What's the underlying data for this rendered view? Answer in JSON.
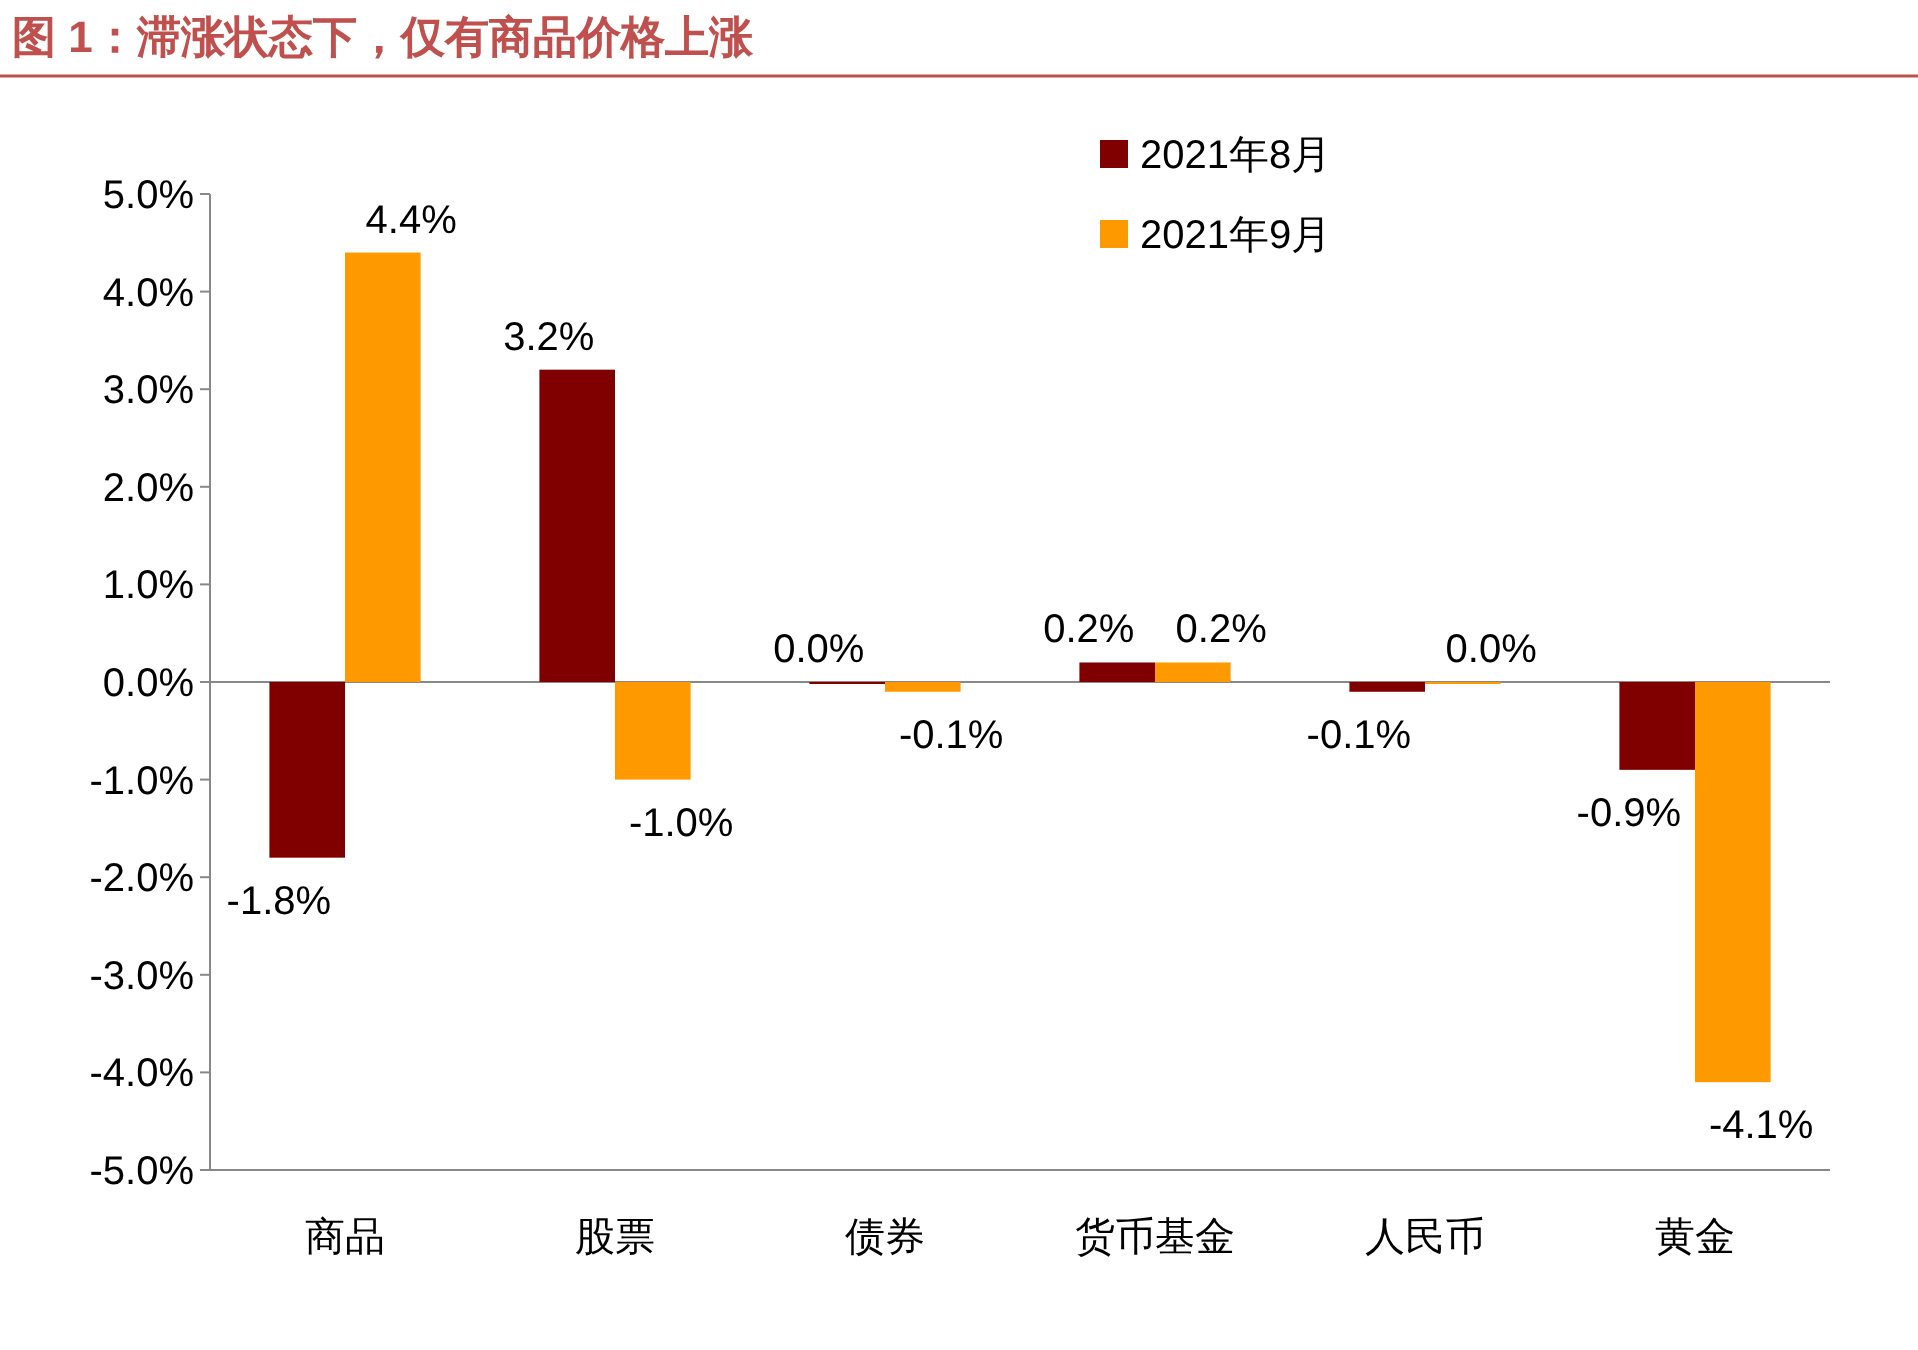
{
  "chart_data": {
    "type": "bar",
    "title": "图 1：滞涨状态下，仅有商品价格上涨",
    "categories": [
      "商品",
      "股票",
      "债券",
      "货币基金",
      "人民币",
      "黄金"
    ],
    "series": [
      {
        "name": "2021年8月",
        "color": "#800000",
        "values": [
          -1.8,
          3.2,
          0.0,
          0.2,
          -0.1,
          -0.9
        ],
        "value_labels": [
          "-1.8%",
          "3.2%",
          "0.0%",
          "0.2%",
          "-0.1%",
          "-0.9%"
        ]
      },
      {
        "name": "2021年9月",
        "color": "#ff9900",
        "values": [
          4.4,
          -1.0,
          -0.1,
          0.2,
          0.0,
          -4.1
        ],
        "value_labels": [
          "4.4%",
          "-1.0%",
          "-0.1%",
          "0.2%",
          "0.0%",
          "-4.1%"
        ]
      }
    ],
    "ylim": [
      -5,
      5
    ],
    "yticks": [
      {
        "value": -5,
        "label": "-5.0%"
      },
      {
        "value": -4,
        "label": "-4.0%"
      },
      {
        "value": -3,
        "label": "-3.0%"
      },
      {
        "value": -2,
        "label": "-2.0%"
      },
      {
        "value": -1,
        "label": "-1.0%"
      },
      {
        "value": 0,
        "label": "0.0%"
      },
      {
        "value": 1,
        "label": "1.0%"
      },
      {
        "value": 2,
        "label": "2.0%"
      },
      {
        "value": 3,
        "label": "3.0%"
      },
      {
        "value": 4,
        "label": "4.0%"
      },
      {
        "value": 5,
        "label": "5.0%"
      }
    ],
    "legend": "top right"
  }
}
